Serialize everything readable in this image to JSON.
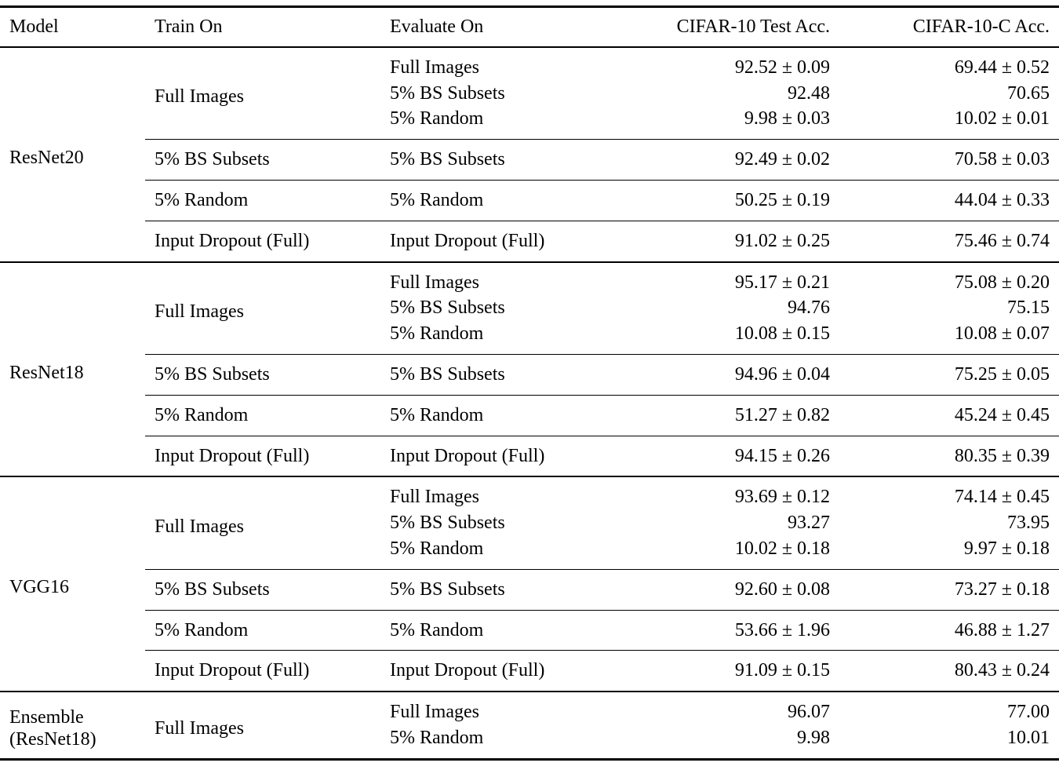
{
  "table": {
    "columns": [
      "Model",
      "Train On",
      "Evaluate On",
      "CIFAR-10 Test Acc.",
      "CIFAR-10-C Acc."
    ],
    "groups": [
      {
        "model": "ResNet20",
        "blocks": [
          {
            "train_on": "Full Images",
            "rows": [
              {
                "evaluate_on": "Full Images",
                "test_acc": "92.52 ± 0.09",
                "c_acc": "69.44 ± 0.52"
              },
              {
                "evaluate_on": "5% BS Subsets",
                "test_acc": "92.48",
                "c_acc": "70.65"
              },
              {
                "evaluate_on": "5% Random",
                "test_acc": "9.98 ± 0.03",
                "c_acc": "10.02 ± 0.01"
              }
            ]
          },
          {
            "train_on": "5% BS Subsets",
            "rows": [
              {
                "evaluate_on": "5% BS Subsets",
                "test_acc": "92.49 ± 0.02",
                "c_acc": "70.58 ± 0.03"
              }
            ]
          },
          {
            "train_on": "5% Random",
            "rows": [
              {
                "evaluate_on": "5% Random",
                "test_acc": "50.25 ± 0.19",
                "c_acc": "44.04 ± 0.33"
              }
            ]
          },
          {
            "train_on": "Input Dropout (Full)",
            "rows": [
              {
                "evaluate_on": "Input Dropout (Full)",
                "test_acc": "91.02 ± 0.25",
                "c_acc": "75.46 ± 0.74"
              }
            ]
          }
        ]
      },
      {
        "model": "ResNet18",
        "blocks": [
          {
            "train_on": "Full Images",
            "rows": [
              {
                "evaluate_on": "Full Images",
                "test_acc": "95.17 ± 0.21",
                "c_acc": "75.08 ± 0.20"
              },
              {
                "evaluate_on": "5% BS Subsets",
                "test_acc": "94.76",
                "c_acc": "75.15"
              },
              {
                "evaluate_on": "5% Random",
                "test_acc": "10.08 ± 0.15",
                "c_acc": "10.08 ± 0.07"
              }
            ]
          },
          {
            "train_on": "5% BS Subsets",
            "rows": [
              {
                "evaluate_on": "5% BS Subsets",
                "test_acc": "94.96 ± 0.04",
                "c_acc": "75.25 ± 0.05"
              }
            ]
          },
          {
            "train_on": "5% Random",
            "rows": [
              {
                "evaluate_on": "5% Random",
                "test_acc": "51.27 ± 0.82",
                "c_acc": "45.24 ± 0.45"
              }
            ]
          },
          {
            "train_on": "Input Dropout (Full)",
            "rows": [
              {
                "evaluate_on": "Input Dropout (Full)",
                "test_acc": "94.15 ± 0.26",
                "c_acc": "80.35 ± 0.39"
              }
            ]
          }
        ]
      },
      {
        "model": "VGG16",
        "blocks": [
          {
            "train_on": "Full Images",
            "rows": [
              {
                "evaluate_on": "Full Images",
                "test_acc": "93.69 ± 0.12",
                "c_acc": "74.14 ± 0.45"
              },
              {
                "evaluate_on": "5% BS Subsets",
                "test_acc": "93.27",
                "c_acc": "73.95"
              },
              {
                "evaluate_on": "5% Random",
                "test_acc": "10.02 ± 0.18",
                "c_acc": "9.97 ± 0.18"
              }
            ]
          },
          {
            "train_on": "5% BS Subsets",
            "rows": [
              {
                "evaluate_on": "5% BS Subsets",
                "test_acc": "92.60 ± 0.08",
                "c_acc": "73.27 ± 0.18"
              }
            ]
          },
          {
            "train_on": "5% Random",
            "rows": [
              {
                "evaluate_on": "5% Random",
                "test_acc": "53.66 ± 1.96",
                "c_acc": "46.88 ± 1.27"
              }
            ]
          },
          {
            "train_on": "Input Dropout (Full)",
            "rows": [
              {
                "evaluate_on": "Input Dropout (Full)",
                "test_acc": "91.09 ± 0.15",
                "c_acc": "80.43 ± 0.24"
              }
            ]
          }
        ]
      },
      {
        "model": "Ensemble (ResNet18)",
        "blocks": [
          {
            "train_on": "Full Images",
            "rows": [
              {
                "evaluate_on": "Full Images",
                "test_acc": "96.07",
                "c_acc": "77.00"
              },
              {
                "evaluate_on": "5% Random",
                "test_acc": "9.98",
                "c_acc": "10.01"
              }
            ]
          }
        ]
      }
    ]
  }
}
